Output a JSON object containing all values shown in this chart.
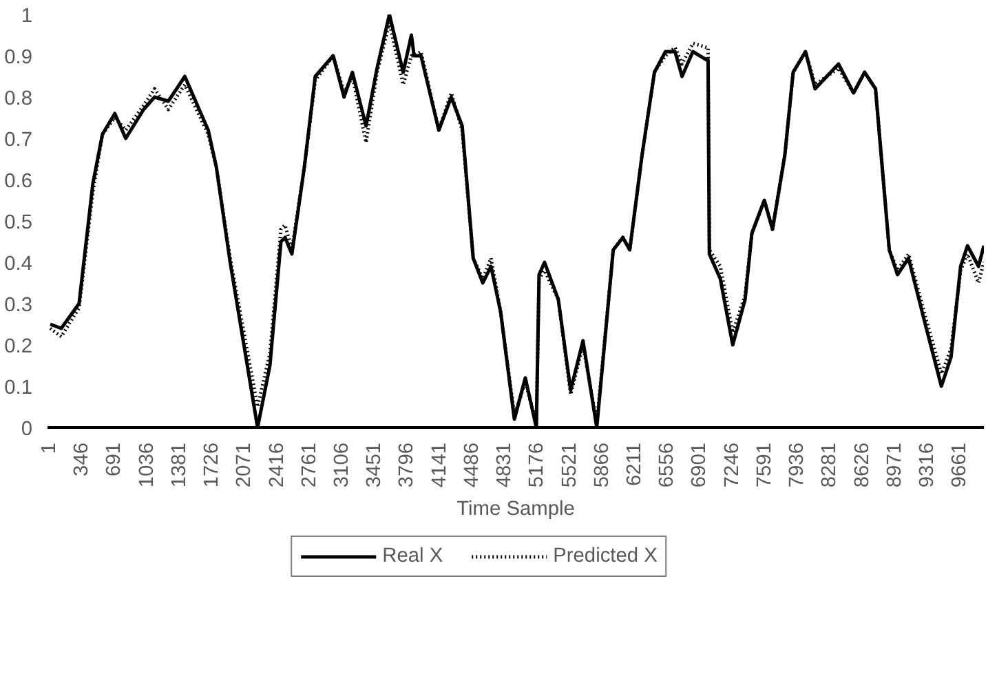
{
  "chart_data": {
    "type": "line",
    "xlabel": "Time Sample",
    "legend": "bottom",
    "grid": false,
    "x": [
      30,
      147,
      336,
      482,
      584,
      715,
      831,
      1021,
      1137,
      1283,
      1458,
      1706,
      1793,
      1939,
      2085,
      2230,
      2361,
      2478,
      2522,
      2594,
      2726,
      2842,
      3032,
      3148,
      3236,
      3381,
      3498,
      3629,
      3775,
      3862,
      3891,
      3964,
      4153,
      4285,
      4401,
      4518,
      4620,
      4707,
      4809,
      4955,
      5071,
      5188,
      5217,
      5275,
      5421,
      5552,
      5683,
      5829,
      6004,
      6106,
      6179,
      6310,
      6441,
      6558,
      6660,
      6734,
      6849,
      6995,
      7010,
      7024,
      7140,
      7272,
      7403,
      7475,
      7607,
      7694,
      7825,
      7913,
      8044,
      8146,
      8394,
      8554,
      8671,
      8787,
      8933,
      9020,
      9137,
      9326,
      9486,
      9588,
      9690,
      9763,
      9880,
      9937
    ],
    "series": [
      {
        "name": "Real X",
        "color": "#000000",
        "line_style": "solid",
        "values": [
          0.25,
          0.24,
          0.3,
          0.59,
          0.71,
          0.76,
          0.7,
          0.77,
          0.8,
          0.79,
          0.85,
          0.72,
          0.63,
          0.4,
          0.2,
          0.0,
          0.15,
          0.45,
          0.46,
          0.42,
          0.63,
          0.85,
          0.9,
          0.8,
          0.86,
          0.73,
          0.87,
          1.0,
          0.86,
          0.95,
          0.9,
          0.9,
          0.72,
          0.8,
          0.73,
          0.41,
          0.35,
          0.39,
          0.28,
          0.02,
          0.12,
          0.0,
          0.37,
          0.4,
          0.31,
          0.09,
          0.21,
          0.0,
          0.43,
          0.46,
          0.43,
          0.66,
          0.86,
          0.91,
          0.91,
          0.85,
          0.91,
          0.89,
          0.89,
          0.42,
          0.36,
          0.2,
          0.31,
          0.47,
          0.55,
          0.48,
          0.66,
          0.86,
          0.91,
          0.82,
          0.88,
          0.81,
          0.86,
          0.82,
          0.43,
          0.37,
          0.41,
          0.24,
          0.1,
          0.17,
          0.39,
          0.44,
          0.39,
          0.44
        ]
      },
      {
        "name": "Predicted X",
        "color": "#000000",
        "line_style": "dotted",
        "values": [
          0.24,
          0.22,
          0.29,
          0.57,
          0.71,
          0.75,
          0.72,
          0.78,
          0.82,
          0.77,
          0.83,
          0.71,
          0.63,
          0.41,
          0.23,
          0.05,
          0.18,
          0.48,
          0.49,
          0.43,
          0.63,
          0.84,
          0.9,
          0.81,
          0.85,
          0.69,
          0.86,
          0.98,
          0.83,
          0.9,
          0.9,
          0.91,
          0.72,
          0.81,
          0.72,
          0.41,
          0.36,
          0.41,
          0.28,
          0.03,
          0.11,
          0.01,
          0.36,
          0.38,
          0.31,
          0.08,
          0.2,
          0.01,
          0.43,
          0.46,
          0.43,
          0.66,
          0.86,
          0.9,
          0.92,
          0.88,
          0.93,
          0.92,
          0.92,
          0.43,
          0.39,
          0.23,
          0.32,
          0.47,
          0.55,
          0.48,
          0.66,
          0.86,
          0.91,
          0.83,
          0.87,
          0.81,
          0.86,
          0.82,
          0.43,
          0.38,
          0.42,
          0.26,
          0.13,
          0.19,
          0.38,
          0.42,
          0.35,
          0.4
        ]
      }
    ],
    "xlim": [
      1,
      9937
    ],
    "xticks": [
      1,
      346,
      691,
      1036,
      1381,
      1726,
      2071,
      2416,
      2761,
      3106,
      3451,
      3796,
      4141,
      4486,
      4831,
      5176,
      5521,
      5866,
      6211,
      6556,
      6901,
      7246,
      7591,
      7936,
      8281,
      8626,
      8971,
      9316,
      9661
    ],
    "ylim": [
      0,
      1
    ],
    "yticks": [
      0,
      {
        "value": 0.1,
        "label": "0.1"
      },
      {
        "value": 0.2,
        "label": "0.2"
      },
      {
        "value": 0.3,
        "label": "0.3"
      },
      {
        "value": 0.4,
        "label": "0.4"
      },
      {
        "value": 0.5,
        "label": "0.5"
      },
      {
        "value": 0.6,
        "label": "0.6"
      },
      {
        "value": 0.7,
        "label": "0.7"
      },
      {
        "value": 0.8,
        "label": "0.8"
      },
      {
        "value": 0.9,
        "label": "0.9"
      },
      1
    ]
  }
}
